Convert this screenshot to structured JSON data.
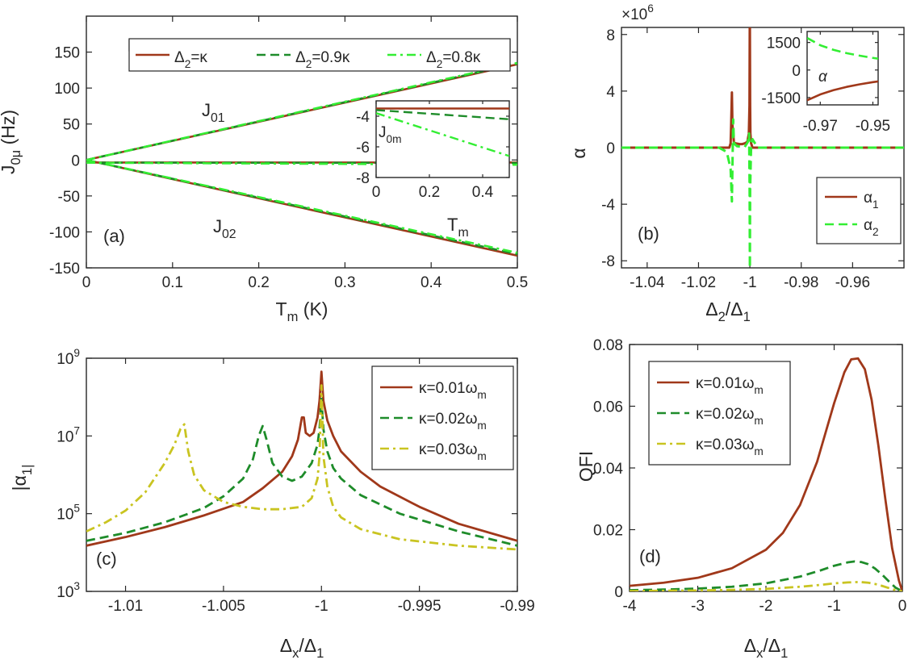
{
  "colors": {
    "brown": "#a0381a",
    "dark_green": "#1e8c2a",
    "light_green": "#33ee33",
    "olive": "#c9c421"
  },
  "chart_data": [
    {
      "panel": "a",
      "type": "line",
      "panel_label": "(a)",
      "xlabel": "T_m (K)",
      "ylabel": "J_0μ (Hz)",
      "xlim": [
        0,
        0.5
      ],
      "ylim": [
        -150,
        200
      ],
      "xticks": [
        0,
        0.1,
        0.2,
        0.3,
        0.4,
        0.5
      ],
      "yticks": [
        -150,
        -100,
        -50,
        0,
        50,
        100,
        150
      ],
      "xticklabels": [
        "0",
        "0.1",
        "0.2",
        "0.3",
        "0.4",
        "0.5"
      ],
      "yticklabels": [
        "-150",
        "-100",
        "-50",
        "0",
        "50",
        "100",
        "150"
      ],
      "legend": [
        "Δ2=κ",
        "Δ2=0.9κ",
        "Δ2=0.8κ"
      ],
      "annotations": [
        "J01",
        "J02",
        "Tm"
      ],
      "series": [
        {
          "legend": "Δ2=κ",
          "color": "brown",
          "dash": "solid",
          "curves": [
            {
              "x": [
                0,
                0.5
              ],
              "y": [
                0,
                133
              ]
            },
            {
              "x": [
                0,
                0.5
              ],
              "y": [
                0,
                -133
              ]
            },
            {
              "x": [
                0,
                0.5
              ],
              "y": [
                -3.5,
                -3.5
              ]
            }
          ]
        },
        {
          "legend": "Δ2=0.9κ",
          "color": "dark_green",
          "dash": "dashed",
          "curves": [
            {
              "x": [
                0,
                0.5
              ],
              "y": [
                0,
                134
              ]
            },
            {
              "x": [
                0,
                0.5
              ],
              "y": [
                0,
                -131
              ]
            },
            {
              "x": [
                0,
                0.5
              ],
              "y": [
                -3.6,
                -4.2
              ]
            }
          ]
        },
        {
          "legend": "Δ2=0.8κ",
          "color": "light_green",
          "dash": "dashdot",
          "curves": [
            {
              "x": [
                0,
                0.5
              ],
              "y": [
                0,
                135
              ]
            },
            {
              "x": [
                0,
                0.5
              ],
              "y": [
                0,
                -129
              ]
            },
            {
              "x": [
                0,
                0.5
              ],
              "y": [
                -3.8,
                -6.6
              ]
            }
          ]
        }
      ],
      "inset": {
        "xlim": [
          0,
          0.5
        ],
        "ylim": [
          -8,
          -3
        ],
        "xticks": [
          0,
          0.2,
          0.4
        ],
        "yticks": [
          -8,
          -6,
          -4
        ],
        "xticklabels": [
          "0",
          "0.2",
          "0.4"
        ],
        "yticklabels": [
          "-8",
          "-6",
          "-4"
        ],
        "ylabel": "J0m",
        "series": [
          {
            "color": "brown",
            "dash": "solid",
            "x": [
              0,
              0.5
            ],
            "y": [
              -3.5,
              -3.5
            ]
          },
          {
            "color": "dark_green",
            "dash": "dashed",
            "x": [
              0,
              0.5
            ],
            "y": [
              -3.6,
              -4.2
            ]
          },
          {
            "color": "light_green",
            "dash": "dashdot",
            "x": [
              0,
              0.5
            ],
            "y": [
              -3.8,
              -6.6
            ]
          }
        ]
      }
    },
    {
      "panel": "b",
      "type": "line",
      "panel_label": "(b)",
      "xlabel": "Δ2/Δ1",
      "ylabel": "α",
      "exponent_label": "×10^6",
      "xlim": [
        -1.05,
        -0.94
      ],
      "ylim": [
        -8.5,
        8.5
      ],
      "xticks": [
        -1.04,
        -1.02,
        -1,
        -0.98,
        -0.96
      ],
      "yticks": [
        -8,
        -4,
        0,
        4,
        8
      ],
      "xticklabels": [
        "-1.04",
        "-1.02",
        "-1",
        "-0.98",
        "-0.96"
      ],
      "yticklabels": [
        "-8",
        "-4",
        "0",
        "4",
        "8"
      ],
      "legend": [
        "α1",
        "α2"
      ],
      "series": [
        {
          "name": "α1",
          "color": "brown",
          "dash": "solid",
          "x": [
            -1.05,
            -1.008,
            -1.0075,
            -1.0073,
            -1.007,
            -1.0068,
            -1.0062,
            -1.0055,
            -1.004,
            -1.003,
            -1.002,
            -1.001,
            -1.0004,
            -1.00015,
            -1.00005,
            -1.0,
            -0.9999,
            -0.9998,
            -0.9995,
            -0.999,
            -0.94
          ],
          "y": [
            0,
            0,
            0.3,
            1.5,
            3.9,
            1.6,
            0.35,
            0.3,
            0.25,
            0.25,
            0.3,
            0.4,
            1.0,
            3.0,
            8.5,
            8.5,
            3.0,
            1.0,
            0.3,
            0,
            0
          ]
        },
        {
          "name": "α2",
          "color": "light_green",
          "dash": "dashed",
          "x": [
            -1.05,
            -1.012,
            -1.009,
            -1.0075,
            -1.007,
            -1.0065,
            -1.0062,
            -1.005,
            -1.002,
            -1.0008,
            -1.0003,
            -1.0001,
            -1.0,
            -0.9999,
            -0.9995,
            -0.999,
            -0.997,
            -0.94
          ],
          "y": [
            0,
            0,
            -0.3,
            -1.5,
            -3.8,
            2.0,
            0.3,
            0.1,
            0.05,
            0.4,
            1.0,
            -3.0,
            -8.5,
            -3.0,
            0.3,
            0.6,
            0,
            0
          ]
        }
      ],
      "inset": {
        "xlim": [
          -0.975,
          -0.948
        ],
        "ylim": [
          -1900,
          2100
        ],
        "xticks": [
          -0.97,
          -0.95
        ],
        "yticks": [
          -1500,
          0,
          1500
        ],
        "xticklabels": [
          "-0.97",
          "-0.95"
        ],
        "yticklabels": [
          "-1500",
          "0",
          "1500"
        ],
        "ylabel": "α",
        "series": [
          {
            "color": "brown",
            "dash": "solid",
            "x": [
              -0.975,
              -0.97,
              -0.965,
              -0.96,
              -0.955,
              -0.95,
              -0.948
            ],
            "y": [
              -1650,
              -1330,
              -1100,
              -920,
              -780,
              -660,
              -620
            ]
          },
          {
            "color": "light_green",
            "dash": "dashed",
            "x": [
              -0.975,
              -0.97,
              -0.965,
              -0.96,
              -0.955,
              -0.95,
              -0.948
            ],
            "y": [
              1750,
              1350,
              1100,
              920,
              780,
              660,
              620
            ]
          }
        ]
      }
    },
    {
      "panel": "c",
      "type": "line",
      "panel_label": "(c)",
      "xlabel": "Δx/Δ1",
      "ylabel": "|α1|",
      "yscale": "log",
      "xlim": [
        -1.012,
        -0.99
      ],
      "ylim": [
        1000,
        1000000000
      ],
      "xticks": [
        -1.01,
        -1.005,
        -1,
        -0.995,
        -0.99
      ],
      "yticks": [
        1000,
        100000,
        10000000,
        1000000000
      ],
      "xticklabels": [
        "-1.01",
        "-1.005",
        "-1",
        "-0.995",
        "-0.99"
      ],
      "yticklabels": [
        "10^3",
        "10^5",
        "10^7",
        "10^9"
      ],
      "legend": [
        "κ=0.01ωm",
        "κ=0.02ωm",
        "κ=0.03ωm"
      ],
      "series": [
        {
          "name": "κ=0.01ωm",
          "color": "brown",
          "dash": "solid",
          "x": [
            -1.012,
            -1.01,
            -1.008,
            -1.006,
            -1.004,
            -1.003,
            -1.002,
            -1.0015,
            -1.0012,
            -1.001,
            -1.0009,
            -1.0008,
            -1.0006,
            -1.0004,
            -1.0002,
            -1.0001,
            -1.0,
            -0.9999,
            -0.9997,
            -0.9994,
            -0.999,
            -0.998,
            -0.997,
            -0.995,
            -0.993,
            -0.99
          ],
          "y": [
            15000,
            25000,
            45000,
            90000,
            200000,
            450000,
            1200000,
            3000000,
            8000000,
            30000000,
            30000000,
            12000000,
            10000000,
            12000000,
            30000000,
            80000000,
            450000000,
            80000000,
            25000000,
            10000000,
            4000000,
            1200000,
            500000,
            150000,
            55000,
            20000
          ]
        },
        {
          "name": "κ=0.02ωm",
          "color": "dark_green",
          "dash": "dashed",
          "x": [
            -1.012,
            -1.01,
            -1.008,
            -1.006,
            -1.005,
            -1.004,
            -1.0035,
            -1.0032,
            -1.003,
            -1.0028,
            -1.0025,
            -1.002,
            -1.0015,
            -1.001,
            -1.0005,
            -1.0002,
            -1.0001,
            -1.0,
            -0.9999,
            -0.9997,
            -0.9994,
            -0.999,
            -0.998,
            -0.996,
            -0.993,
            -0.99
          ],
          "y": [
            20000,
            32000,
            60000,
            140000,
            280000,
            800000,
            2500000,
            10000000,
            18000000,
            8000000,
            2000000,
            900000,
            700000,
            900000,
            2000000,
            6000000,
            15000000,
            90000000,
            15000000,
            4000000,
            1500000,
            800000,
            300000,
            100000,
            35000,
            15000
          ]
        },
        {
          "name": "κ=0.03ωm",
          "color": "olive",
          "dash": "dashdot",
          "x": [
            -1.012,
            -1.011,
            -1.01,
            -1.009,
            -1.008,
            -1.0075,
            -1.0072,
            -1.007,
            -1.0068,
            -1.0065,
            -1.006,
            -1.005,
            -1.004,
            -1.003,
            -1.002,
            -1.001,
            -1.0005,
            -1.0002,
            -1.0001,
            -1.0,
            -0.9999,
            -0.9997,
            -0.9994,
            -0.999,
            -0.998,
            -0.996,
            -0.993,
            -0.99
          ],
          "y": [
            35000,
            60000,
            120000,
            350000,
            2000000,
            6000000,
            15000000,
            20000000,
            4000000,
            1000000,
            400000,
            200000,
            150000,
            130000,
            130000,
            150000,
            250000,
            800000,
            3000000,
            200000000,
            3000000,
            500000,
            150000,
            80000,
            40000,
            22000,
            15000,
            12000
          ]
        }
      ]
    },
    {
      "panel": "d",
      "type": "line",
      "panel_label": "(d)",
      "xlabel": "Δx/Δ1",
      "ylabel": "QFI",
      "xlim": [
        -4,
        0
      ],
      "ylim": [
        0,
        0.08
      ],
      "xticks": [
        -4,
        -3,
        -2,
        -1,
        0
      ],
      "yticks": [
        0,
        0.02,
        0.04,
        0.06,
        0.08
      ],
      "xticklabels": [
        "-4",
        "-3",
        "-2",
        "-1",
        "0"
      ],
      "yticklabels": [
        "0",
        "0.02",
        "0.04",
        "0.06",
        "0.08"
      ],
      "legend": [
        "κ=0.01ωm",
        "κ=0.02ωm",
        "κ=0.03ωm"
      ],
      "series": [
        {
          "name": "κ=0.01ωm",
          "color": "brown",
          "dash": "solid",
          "x": [
            -4,
            -3.5,
            -3,
            -2.5,
            -2,
            -1.75,
            -1.5,
            -1.25,
            -1,
            -0.85,
            -0.75,
            -0.65,
            -0.55,
            -0.45,
            -0.35,
            -0.25,
            -0.15,
            -0.05,
            0
          ],
          "y": [
            0.0018,
            0.0028,
            0.0044,
            0.0075,
            0.0135,
            0.019,
            0.028,
            0.042,
            0.061,
            0.071,
            0.0752,
            0.0755,
            0.072,
            0.062,
            0.047,
            0.03,
            0.014,
            0.0035,
            0
          ]
        },
        {
          "name": "κ=0.02ωm",
          "color": "dark_green",
          "dash": "dashed",
          "x": [
            -4,
            -3.5,
            -3,
            -2.5,
            -2,
            -1.5,
            -1.2,
            -1,
            -0.8,
            -0.7,
            -0.6,
            -0.5,
            -0.4,
            -0.3,
            -0.2,
            -0.1,
            0
          ],
          "y": [
            0.0004,
            0.0006,
            0.0009,
            0.0015,
            0.0026,
            0.0048,
            0.0068,
            0.0083,
            0.0094,
            0.0097,
            0.0095,
            0.0088,
            0.0074,
            0.0055,
            0.0033,
            0.0012,
            0
          ]
        },
        {
          "name": "κ=0.03ωm",
          "color": "olive",
          "dash": "dashdot",
          "x": [
            -4,
            -3.5,
            -3,
            -2.5,
            -2,
            -1.5,
            -1.2,
            -1,
            -0.8,
            -0.7,
            -0.6,
            -0.5,
            -0.4,
            -0.3,
            -0.2,
            -0.1,
            0
          ],
          "y": [
            0.0001,
            0.0002,
            0.0003,
            0.0005,
            0.0008,
            0.0015,
            0.0021,
            0.0026,
            0.0029,
            0.003,
            0.003,
            0.0028,
            0.0024,
            0.0018,
            0.0011,
            0.0004,
            0
          ]
        }
      ]
    }
  ]
}
